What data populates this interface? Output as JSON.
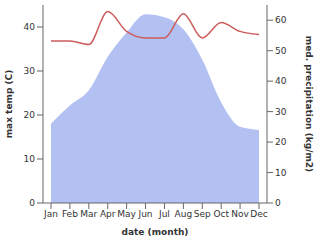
{
  "chart_data": {
    "type": "line",
    "categories": [
      "Jan",
      "Feb",
      "Mar",
      "Apr",
      "May",
      "Jun",
      "Jul",
      "Aug",
      "Sep",
      "Oct",
      "Nov",
      "Dec"
    ],
    "xlabel": "date (month)",
    "ylabel": "max temp (C)",
    "y2label": "med. precipitation (kg/m2)",
    "ylim": [
      0,
      45
    ],
    "yticks": [
      0,
      10,
      20,
      30,
      40
    ],
    "y2lim": [
      0,
      65
    ],
    "y2ticks": [
      0,
      10,
      20,
      30,
      40,
      50,
      60
    ],
    "grid": false,
    "series": [
      {
        "type": "area",
        "axis": "y2",
        "color": "#b3c0f2",
        "values": [
          26,
          32,
          37,
          48,
          56,
          62,
          61,
          57,
          47,
          33,
          25,
          24
        ]
      },
      {
        "type": "line",
        "color": "#cd5c5c",
        "values": [
          36.8,
          36.8,
          36,
          43.5,
          39,
          37.5,
          37.5,
          43,
          37.5,
          41,
          39,
          38.3
        ]
      }
    ]
  }
}
